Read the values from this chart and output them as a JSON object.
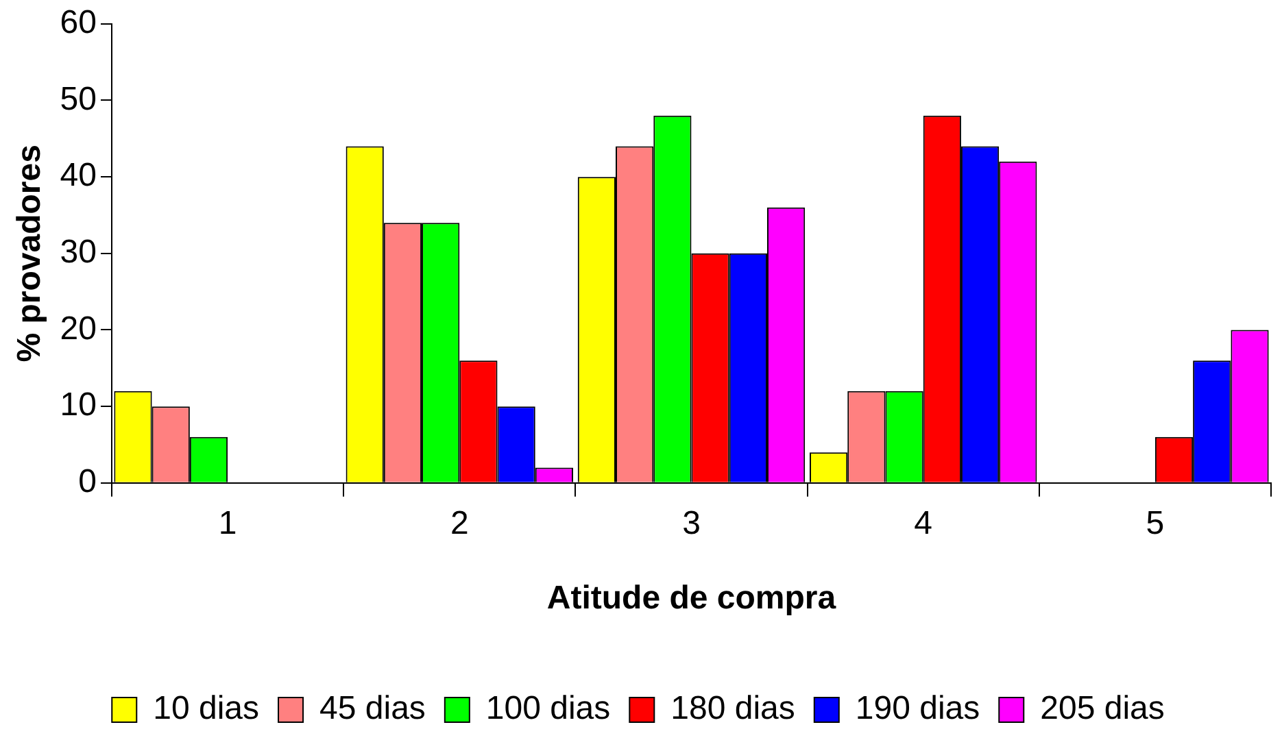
{
  "chart_data": {
    "type": "bar",
    "xlabel": "Atitude de compra",
    "ylabel": "% provadores",
    "categories": [
      "1",
      "2",
      "3",
      "4",
      "5"
    ],
    "series": [
      {
        "name": "10 dias",
        "color": "#ffff00",
        "values": [
          12,
          44,
          40,
          4,
          0
        ]
      },
      {
        "name": "45 dias",
        "color": "#ff8080",
        "values": [
          10,
          34,
          44,
          12,
          0
        ]
      },
      {
        "name": "100 dias",
        "color": "#00ff00",
        "values": [
          6,
          34,
          48,
          12,
          0
        ]
      },
      {
        "name": "180 dias",
        "color": "#ff0000",
        "values": [
          0,
          16,
          30,
          48,
          6
        ]
      },
      {
        "name": "190 dias",
        "color": "#0000ff",
        "values": [
          0,
          10,
          30,
          44,
          16
        ]
      },
      {
        "name": "205 dias",
        "color": "#ff00ff",
        "values": [
          0,
          2,
          36,
          42,
          20
        ]
      }
    ],
    "ylim": [
      0,
      60
    ],
    "yticks": [
      0,
      10,
      20,
      30,
      40,
      50,
      60
    ],
    "legend": "bottom"
  }
}
